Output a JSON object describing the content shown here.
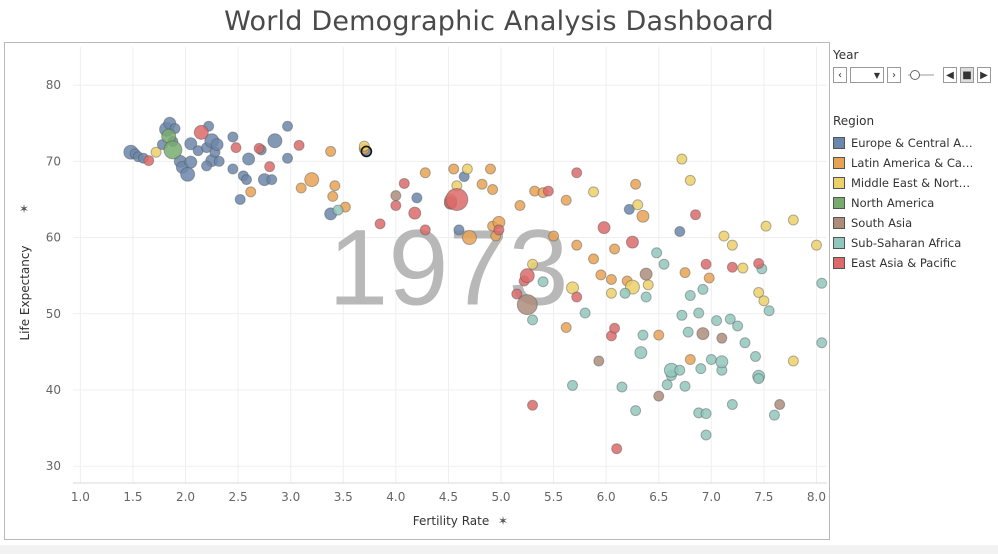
{
  "title": "World Demographic Analysis Dashboard",
  "controls": {
    "year_label": "Year",
    "region_label": "Region"
  },
  "legend": [
    {
      "label": "Europe & Central Asia",
      "color": "#6b87aa"
    },
    {
      "label": "Latin America & Cari..",
      "color": "#e8a253"
    },
    {
      "label": "Middle East & North ..",
      "color": "#ecd069"
    },
    {
      "label": "North America",
      "color": "#77ab6e"
    },
    {
      "label": "South Asia",
      "color": "#ad8c7a"
    },
    {
      "label": "Sub-Saharan Africa",
      "color": "#90c7bc"
    },
    {
      "label": "East Asia & Pacific",
      "color": "#dc6a6a"
    }
  ],
  "chart_data": {
    "type": "scatter",
    "watermark_year": "1973",
    "xlabel": "Fertility Rate",
    "ylabel": "Life Expectancy",
    "xlim": [
      0.93,
      8.1
    ],
    "ylim": [
      27.8,
      85
    ],
    "xticks": [
      "1.0",
      "1.5",
      "2.0",
      "2.5",
      "3.0",
      "3.5",
      "4.0",
      "4.5",
      "5.0",
      "5.5",
      "6.0",
      "6.5",
      "7.0",
      "7.5",
      "8.0"
    ],
    "yticks": [
      "30",
      "40",
      "50",
      "60",
      "70",
      "80"
    ],
    "grid": true,
    "legend_position": "right",
    "series": [
      {
        "name": "Europe & Central Asia",
        "color": "#6b87aa",
        "points": [
          [
            1.48,
            71.2,
            7
          ],
          [
            1.52,
            71.0,
            5
          ],
          [
            1.55,
            70.6,
            5
          ],
          [
            1.6,
            70.4,
            5
          ],
          [
            1.78,
            72.2,
            5
          ],
          [
            1.82,
            74.2,
            7
          ],
          [
            1.85,
            75.0,
            6
          ],
          [
            1.9,
            74.3,
            5
          ],
          [
            1.88,
            72.6,
            5
          ],
          [
            1.95,
            70.0,
            6
          ],
          [
            1.97,
            69.2,
            6
          ],
          [
            2.02,
            68.3,
            7
          ],
          [
            2.05,
            69.9,
            6
          ],
          [
            2.05,
            72.3,
            6
          ],
          [
            2.12,
            71.4,
            5
          ],
          [
            2.2,
            71.8,
            5
          ],
          [
            2.22,
            74.6,
            5
          ],
          [
            2.25,
            72.7,
            7
          ],
          [
            2.25,
            70.1,
            6
          ],
          [
            2.28,
            71.2,
            5
          ],
          [
            2.3,
            72.2,
            6
          ],
          [
            2.2,
            69.4,
            5
          ],
          [
            2.32,
            70.0,
            5
          ],
          [
            2.45,
            73.2,
            5
          ],
          [
            2.45,
            69.0,
            5
          ],
          [
            2.55,
            68.1,
            5
          ],
          [
            2.58,
            67.6,
            5
          ],
          [
            2.6,
            70.3,
            6
          ],
          [
            2.72,
            71.5,
            5
          ],
          [
            2.75,
            67.6,
            6
          ],
          [
            2.82,
            67.6,
            5
          ],
          [
            2.85,
            72.7,
            7
          ],
          [
            2.97,
            74.6,
            5
          ],
          [
            2.97,
            70.4,
            5
          ],
          [
            2.52,
            65.0,
            5
          ],
          [
            3.38,
            63.1,
            6
          ],
          [
            3.72,
            71.3,
            5
          ],
          [
            4.2,
            65.2,
            5
          ],
          [
            4.6,
            61.0,
            5
          ],
          [
            4.65,
            68.0,
            5
          ],
          [
            6.22,
            63.7,
            5
          ],
          [
            6.7,
            60.8,
            5
          ]
        ]
      },
      {
        "name": "Latin America & Cari..",
        "color": "#e8a253",
        "points": [
          [
            2.62,
            66.0,
            5
          ],
          [
            3.1,
            66.5,
            5
          ],
          [
            3.2,
            67.6,
            7
          ],
          [
            3.38,
            71.3,
            5
          ],
          [
            3.4,
            65.4,
            5
          ],
          [
            3.42,
            66.8,
            5
          ],
          [
            3.52,
            64.0,
            5
          ],
          [
            3.7,
            71.6,
            5
          ],
          [
            4.28,
            68.5,
            5
          ],
          [
            4.52,
            64.5,
            6
          ],
          [
            4.55,
            69.0,
            5
          ],
          [
            4.7,
            60.0,
            7
          ],
          [
            4.82,
            67.0,
            5
          ],
          [
            4.9,
            69.0,
            5
          ],
          [
            4.92,
            66.3,
            5
          ],
          [
            4.92,
            61.5,
            5
          ],
          [
            4.95,
            60.2,
            5
          ],
          [
            4.98,
            62.0,
            6
          ],
          [
            5.18,
            64.2,
            5
          ],
          [
            5.32,
            66.1,
            5
          ],
          [
            5.4,
            65.9,
            5
          ],
          [
            5.5,
            60.2,
            5
          ],
          [
            5.62,
            64.9,
            5
          ],
          [
            5.72,
            59.0,
            5
          ],
          [
            5.88,
            57.2,
            5
          ],
          [
            5.95,
            55.1,
            5
          ],
          [
            6.08,
            58.5,
            5
          ],
          [
            6.2,
            54.3,
            5
          ],
          [
            6.28,
            67.0,
            5
          ],
          [
            6.35,
            62.8,
            6
          ],
          [
            6.5,
            47.2,
            5
          ],
          [
            6.75,
            55.4,
            5
          ],
          [
            6.8,
            44.0,
            5
          ],
          [
            6.98,
            54.7,
            5
          ],
          [
            5.62,
            48.2,
            5
          ],
          [
            6.05,
            54.5,
            5
          ]
        ]
      },
      {
        "name": "Middle East & North ..",
        "color": "#ecd069",
        "points": [
          [
            1.72,
            71.2,
            5
          ],
          [
            3.7,
            72.0,
            5
          ],
          [
            4.52,
            64.9,
            6
          ],
          [
            4.58,
            66.8,
            5
          ],
          [
            4.68,
            69.0,
            5
          ],
          [
            5.3,
            56.5,
            5
          ],
          [
            5.88,
            66.0,
            5
          ],
          [
            5.68,
            53.4,
            6
          ],
          [
            6.05,
            52.7,
            5
          ],
          [
            6.25,
            53.5,
            7
          ],
          [
            6.3,
            64.3,
            5
          ],
          [
            6.4,
            53.8,
            5
          ],
          [
            6.72,
            70.3,
            5
          ],
          [
            6.8,
            67.5,
            5
          ],
          [
            7.12,
            60.2,
            5
          ],
          [
            7.2,
            59.0,
            5
          ],
          [
            7.3,
            56.0,
            5
          ],
          [
            7.45,
            52.8,
            5
          ],
          [
            7.5,
            51.7,
            5
          ],
          [
            7.52,
            61.5,
            5
          ],
          [
            7.78,
            62.3,
            5
          ],
          [
            7.78,
            43.8,
            5
          ],
          [
            8.0,
            59.0,
            5
          ]
        ]
      },
      {
        "name": "North America",
        "color": "#77ab6e",
        "points": [
          [
            1.84,
            73.3,
            7
          ],
          [
            1.88,
            71.5,
            9
          ]
        ]
      },
      {
        "name": "South Asia",
        "color": "#ad8c7a",
        "points": [
          [
            4.0,
            65.5,
            5
          ],
          [
            5.25,
            51.2,
            10
          ],
          [
            5.93,
            43.8,
            5
          ],
          [
            6.38,
            55.2,
            6
          ],
          [
            6.5,
            39.2,
            5
          ],
          [
            6.92,
            47.4,
            6
          ],
          [
            7.1,
            46.8,
            5
          ],
          [
            7.65,
            38.1,
            5
          ]
        ]
      },
      {
        "name": "Sub-Saharan Africa",
        "color": "#90c7bc",
        "points": [
          [
            3.45,
            63.6,
            5
          ],
          [
            5.3,
            49.2,
            5
          ],
          [
            5.4,
            54.2,
            5
          ],
          [
            5.68,
            40.6,
            5
          ],
          [
            5.8,
            50.1,
            5
          ],
          [
            6.15,
            40.4,
            5
          ],
          [
            6.18,
            52.7,
            5
          ],
          [
            6.28,
            37.3,
            5
          ],
          [
            6.33,
            44.9,
            6
          ],
          [
            6.35,
            47.2,
            5
          ],
          [
            6.38,
            52.2,
            5
          ],
          [
            6.48,
            58.0,
            5
          ],
          [
            6.55,
            56.5,
            5
          ],
          [
            6.58,
            40.7,
            5
          ],
          [
            6.62,
            41.9,
            5
          ],
          [
            6.62,
            42.6,
            7
          ],
          [
            6.7,
            42.6,
            5
          ],
          [
            6.72,
            49.8,
            5
          ],
          [
            6.75,
            40.5,
            5
          ],
          [
            6.78,
            47.6,
            5
          ],
          [
            6.8,
            52.4,
            5
          ],
          [
            6.88,
            50.1,
            5
          ],
          [
            6.88,
            37.0,
            5
          ],
          [
            6.92,
            53.2,
            5
          ],
          [
            6.95,
            36.9,
            5
          ],
          [
            6.95,
            34.1,
            5
          ],
          [
            6.9,
            42.8,
            5
          ],
          [
            7.0,
            44.0,
            5
          ],
          [
            7.05,
            49.1,
            5
          ],
          [
            7.1,
            42.6,
            5
          ],
          [
            7.1,
            43.7,
            6
          ],
          [
            7.18,
            49.3,
            5
          ],
          [
            7.2,
            38.1,
            5
          ],
          [
            7.25,
            48.4,
            5
          ],
          [
            7.32,
            46.2,
            5
          ],
          [
            7.42,
            44.4,
            5
          ],
          [
            7.45,
            41.8,
            6
          ],
          [
            7.45,
            41.5,
            5
          ],
          [
            7.48,
            55.9,
            5
          ],
          [
            7.55,
            50.4,
            5
          ],
          [
            7.6,
            36.7,
            5
          ],
          [
            8.05,
            54.0,
            5
          ],
          [
            8.05,
            46.2,
            5
          ]
        ]
      },
      {
        "name": "East Asia & Pacific",
        "color": "#dc6a6a",
        "points": [
          [
            1.65,
            70.1,
            5
          ],
          [
            2.15,
            73.8,
            7
          ],
          [
            2.48,
            71.8,
            5
          ],
          [
            2.7,
            71.7,
            5
          ],
          [
            2.8,
            69.3,
            5
          ],
          [
            3.08,
            72.1,
            5
          ],
          [
            3.85,
            61.8,
            5
          ],
          [
            4.0,
            64.2,
            5
          ],
          [
            4.08,
            67.1,
            5
          ],
          [
            4.18,
            63.2,
            6
          ],
          [
            4.28,
            61.0,
            5
          ],
          [
            4.52,
            64.6,
            6
          ],
          [
            4.58,
            65.0,
            11
          ],
          [
            4.98,
            61.0,
            5
          ],
          [
            5.15,
            52.6,
            5
          ],
          [
            5.22,
            54.3,
            5
          ],
          [
            5.25,
            55.0,
            7
          ],
          [
            5.3,
            38.0,
            5
          ],
          [
            5.45,
            66.1,
            5
          ],
          [
            5.72,
            52.2,
            5
          ],
          [
            5.72,
            68.5,
            5
          ],
          [
            5.98,
            61.3,
            6
          ],
          [
            6.05,
            47.1,
            5
          ],
          [
            6.08,
            48.1,
            5
          ],
          [
            6.1,
            32.3,
            5
          ],
          [
            6.25,
            59.4,
            6
          ],
          [
            6.85,
            63.0,
            5
          ],
          [
            6.95,
            56.5,
            5
          ],
          [
            7.2,
            56.1,
            5
          ],
          [
            7.45,
            56.6,
            5
          ]
        ]
      }
    ]
  }
}
